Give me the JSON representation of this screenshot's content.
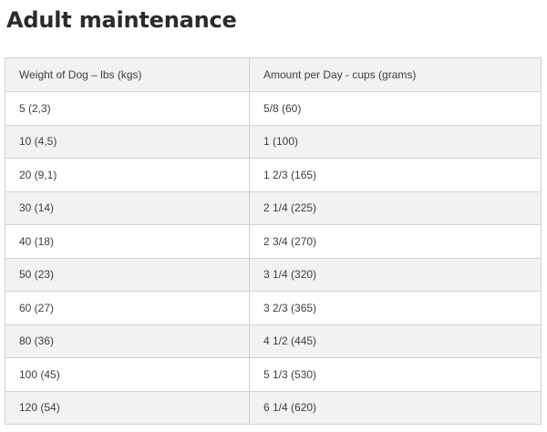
{
  "title": "Adult maintenance",
  "table": {
    "headers": [
      "Weight of Dog – lbs (kgs)",
      "Amount per Day - cups (grams)"
    ],
    "rows": [
      [
        "5 (2,3)",
        "5/8 (60)"
      ],
      [
        "10 (4,5)",
        "1 (100)"
      ],
      [
        "20 (9,1)",
        "1 2/3 (165)"
      ],
      [
        "30 (14)",
        "2 1/4 (225)"
      ],
      [
        "40 (18)",
        "2 3/4 (270)"
      ],
      [
        "50 (23)",
        "3 1/4 (320)"
      ],
      [
        "60 (27)",
        "3 2/3 (365)"
      ],
      [
        "80 (36)",
        "4 1/2 (445)"
      ],
      [
        "100 (45)",
        "5 1/3 (530)"
      ],
      [
        "120 (54)",
        "6 1/4 (620)"
      ]
    ]
  }
}
